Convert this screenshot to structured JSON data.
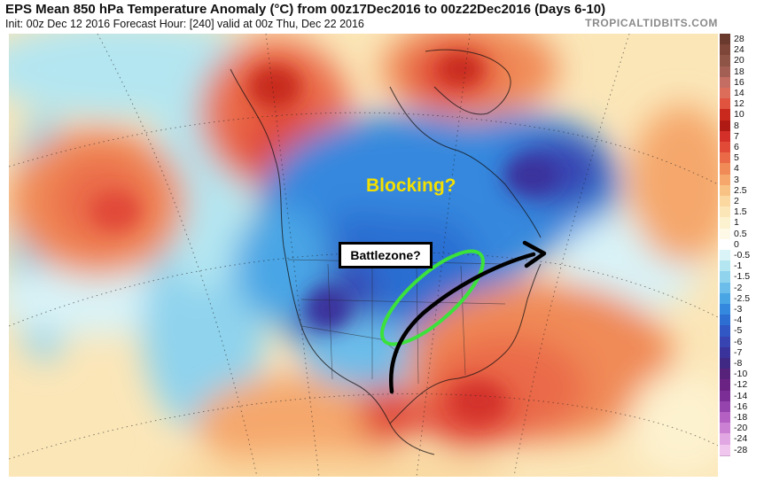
{
  "header": {
    "title": "EPS Mean 850 hPa Temperature Anomaly (°C) from 00z17Dec2016 to 00z22Dec2016 (Days 6-10)",
    "subtitle": "Init: 00z Dec 12 2016   Forecast Hour: [240]   valid at 00z Thu, Dec 22 2016",
    "brand": "TROPICALTIDBITS.COM"
  },
  "annotations": {
    "blocking_label": "Blocking?",
    "battlezone_label": "Battlezone?",
    "oval_color": "#3be23b",
    "arrow_color": "#000000",
    "blocking_color": "#f4e000"
  },
  "legend": {
    "values": [
      "28",
      "24",
      "20",
      "18",
      "16",
      "14",
      "12",
      "10",
      "8",
      "7",
      "6",
      "5",
      "4",
      "3",
      "2.5",
      "2",
      "1.5",
      "1",
      "0.5",
      "0",
      "-0.5",
      "-1",
      "-1.5",
      "-2",
      "-2.5",
      "-3",
      "-4",
      "-5",
      "-6",
      "-7",
      "-8",
      "-10",
      "-12",
      "-14",
      "-16",
      "-18",
      "-20",
      "-24",
      "-28"
    ],
    "colors": [
      "#6b3a2e",
      "#7d4638",
      "#8e5446",
      "#a35f54",
      "#c46d63",
      "#dc6d5b",
      "#e0533e",
      "#c8291c",
      "#b01a14",
      "#d3302a",
      "#e14a37",
      "#ea6a48",
      "#f08a57",
      "#f5a76c",
      "#f8c285",
      "#fad89f",
      "#fbe6b8",
      "#fdf2cf",
      "#fef9e6",
      "#ffffff",
      "#d9f3f7",
      "#b4e6f1",
      "#8fd3ed",
      "#6cbdea",
      "#4aa5e5",
      "#3488de",
      "#2c6ed2",
      "#3157c4",
      "#3744b2",
      "#3b339c",
      "#402985",
      "#57237a",
      "#6b2383",
      "#7c2e97",
      "#9544ad",
      "#b460c3",
      "#cb80d3",
      "#e1a7e2",
      "#f0c6ee"
    ]
  },
  "icons": {
    "track_arrow": "arrow-icon",
    "battlezone_oval": "oval-icon"
  }
}
